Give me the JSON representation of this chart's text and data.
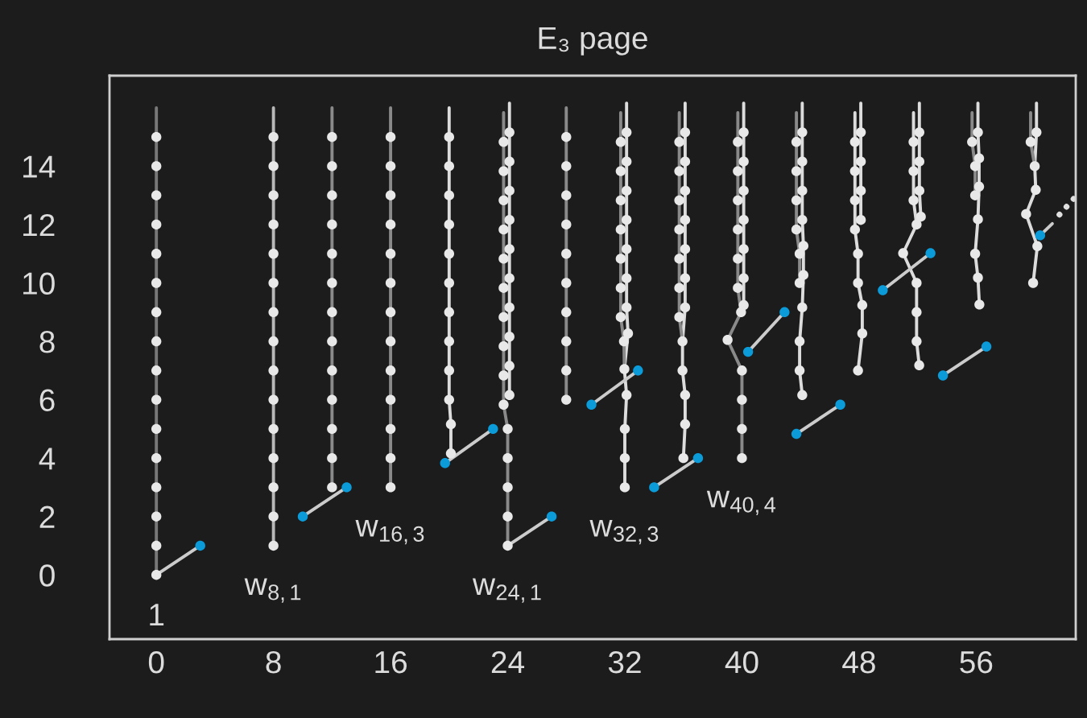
{
  "chart_data": {
    "type": "line",
    "title": "E₃ page",
    "xlim": [
      -3.2,
      62.8
    ],
    "ylim": [
      -2.2,
      17.1
    ],
    "xticks": [
      0,
      8,
      16,
      24,
      32,
      40,
      48,
      56
    ],
    "yticks": [
      0,
      2,
      4,
      6,
      8,
      10,
      12,
      14
    ],
    "annotations": [
      {
        "text": "1",
        "x": 0,
        "y": 0
      },
      {
        "text": "w$_{8,1}$",
        "x": 8,
        "y": 1
      },
      {
        "text": "w$_{16,3}$",
        "x": 16,
        "y": 3
      },
      {
        "text": "w$_{24,1}$",
        "x": 24,
        "y": 1
      },
      {
        "text": "w$_{32,3}$",
        "x": 32,
        "y": 3
      },
      {
        "text": "w$_{40,4}$",
        "x": 40,
        "y": 4
      }
    ],
    "series": [
      {
        "color": "#787878",
        "marker": "none",
        "x": [
          0,
          0
        ],
        "values": [
          0,
          16
        ]
      },
      {
        "color": "#b8b8b8",
        "marker": "none",
        "x": [
          8,
          8
        ],
        "values": [
          1,
          16
        ]
      },
      {
        "color": "#8a8a8a",
        "marker": "none",
        "x": [
          12,
          12
        ],
        "values": [
          3,
          16
        ]
      },
      {
        "color": "#8a8a8a",
        "marker": "none",
        "x": [
          16,
          16
        ],
        "values": [
          3,
          16
        ]
      },
      {
        "color": "#dcdcdc",
        "marker": "none",
        "x": [
          20.12,
          20.12,
          20,
          20
        ],
        "values": [
          4.16,
          5.16,
          6,
          16
        ]
      },
      {
        "color": "#8a8a8a",
        "marker": "none",
        "x": [
          24,
          24,
          23.72,
          23.72
        ],
        "values": [
          1,
          5,
          5.83,
          15.83
        ]
      },
      {
        "color": "#dcdcdc",
        "marker": "none",
        "x": [
          24.12,
          24.12
        ],
        "values": [
          6.16,
          16.16
        ]
      },
      {
        "color": "#8a8a8a",
        "marker": "none",
        "x": [
          28,
          28
        ],
        "values": [
          6,
          16
        ]
      },
      {
        "color": "#dcdcdc",
        "marker": "none",
        "x": [
          32,
          32,
          32.12,
          31.97,
          32.22,
          32.12,
          32.12
        ],
        "values": [
          3,
          5,
          6.16,
          7.05,
          8.27,
          9.16,
          16.16
        ]
      },
      {
        "color": "#8a8a8a",
        "marker": "none",
        "x": [
          31.97,
          31.94,
          31.72,
          31.72
        ],
        "values": [
          7.05,
          8,
          8.83,
          15.83
        ]
      },
      {
        "color": "#dcdcdc",
        "marker": "none",
        "x": [
          36,
          36.12,
          36.12,
          35.94,
          35.94,
          36.12,
          36.12
        ],
        "values": [
          4,
          5.16,
          6.16,
          7,
          8,
          9.16,
          16.16
        ]
      },
      {
        "color": "#8a8a8a",
        "marker": "none",
        "x": [
          35.94,
          35.72,
          35.72
        ],
        "values": [
          8,
          8.83,
          15.83
        ]
      },
      {
        "color": "#8a8a8a",
        "marker": "none",
        "x": [
          40,
          40,
          39.02,
          39.94,
          39.72,
          39.72
        ],
        "values": [
          4,
          7,
          8.05,
          9,
          9.83,
          15.83
        ]
      },
      {
        "color": "#dcdcdc",
        "marker": "none",
        "x": [
          40.12,
          40.12
        ],
        "values": [
          9.24,
          16.16
        ]
      },
      {
        "color": "#dcdcdc",
        "marker": "none",
        "x": [
          44.12,
          43.94,
          43.94,
          44.12,
          44.2,
          44.2,
          44.12,
          44.12
        ],
        "values": [
          6.16,
          7,
          8,
          9.16,
          10.27,
          11.27,
          12.16,
          16.16
        ]
      },
      {
        "color": "#8a8a8a",
        "marker": "none",
        "x": [
          43.94,
          43.94,
          43.72,
          43.72
        ],
        "values": [
          10,
          11,
          11.83,
          15.83
        ]
      },
      {
        "color": "#dcdcdc",
        "marker": "none",
        "x": [
          47.93,
          48.22,
          48.22,
          47.93,
          47.93,
          47.72,
          47.72
        ],
        "values": [
          7,
          8.27,
          9.24,
          10,
          11,
          11.83,
          15.83
        ]
      },
      {
        "color": "#dcdcdc",
        "marker": "none",
        "x": [
          48.12,
          48.12
        ],
        "values": [
          12.16,
          16.16
        ]
      },
      {
        "color": "#dcdcdc",
        "marker": "none",
        "x": [
          52.11,
          51.93,
          51.93,
          51.01,
          51.93,
          51.72,
          51.72
        ],
        "values": [
          7.18,
          8,
          10,
          11.02,
          12,
          12.83,
          15.83
        ]
      },
      {
        "color": "#dcdcdc",
        "marker": "none",
        "x": [
          52.22,
          52.12,
          52.12
        ],
        "values": [
          12.27,
          13.16,
          16.16
        ]
      },
      {
        "color": "#dcdcdc",
        "marker": "none",
        "x": [
          56.22,
          56.12,
          55.93,
          56.12,
          56.2,
          56.2,
          56.12,
          56.12
        ],
        "values": [
          9.26,
          10.18,
          11,
          12.18,
          13.3,
          14.27,
          15.16,
          16.16
        ]
      },
      {
        "color": "#8a8a8a",
        "marker": "none",
        "x": [
          55.93,
          55.93,
          55.72,
          55.72
        ],
        "values": [
          13,
          14,
          14.83,
          15.83
        ]
      },
      {
        "color": "#dcdcdc",
        "marker": "none",
        "x": [
          60.12,
          60.12,
          60,
          60.07,
          59.41,
          60.18,
          59.89
        ],
        "values": [
          16.16,
          15.16,
          14,
          13.19,
          12.36,
          11.26,
          10
        ]
      },
      {
        "color": "#8a8a8a",
        "marker": "none",
        "x": [
          59.72,
          59.72,
          60
        ],
        "values": [
          15.83,
          14.83,
          14
        ]
      },
      {
        "color": "#cccccc",
        "marker": "none",
        "x": [
          0,
          3
        ],
        "values": [
          0,
          1
        ]
      },
      {
        "color": "#cccccc",
        "marker": "none",
        "x": [
          10,
          13
        ],
        "values": [
          2,
          3
        ]
      },
      {
        "color": "#cccccc",
        "marker": "none",
        "x": [
          19.72,
          23
        ],
        "values": [
          3.83,
          5
        ]
      },
      {
        "color": "#cccccc",
        "marker": "none",
        "x": [
          24,
          27
        ],
        "values": [
          1,
          2
        ]
      },
      {
        "color": "#cccccc",
        "marker": "none",
        "x": [
          29.72,
          32.9
        ],
        "values": [
          5.83,
          7
        ]
      },
      {
        "color": "#cccccc",
        "marker": "none",
        "x": [
          34,
          37
        ],
        "values": [
          3,
          4
        ]
      },
      {
        "color": "#cccccc",
        "marker": "none",
        "x": [
          40.42,
          42.91
        ],
        "values": [
          7.64,
          9
        ]
      },
      {
        "color": "#cccccc",
        "marker": "none",
        "x": [
          43.72,
          46.72
        ],
        "values": [
          4.83,
          5.83
        ]
      },
      {
        "color": "#cccccc",
        "marker": "none",
        "x": [
          49.62,
          52.88
        ],
        "values": [
          9.75,
          11.02
        ]
      },
      {
        "color": "#cccccc",
        "marker": "none",
        "x": [
          53.73,
          56.7
        ],
        "values": [
          6.83,
          7.82
        ]
      },
      {
        "color": "#cccccc",
        "marker": "none",
        "x": [
          60.37,
          61.2
        ],
        "values": [
          11.63,
          12.03
        ]
      },
      {
        "color": "#e0e0e0",
        "marker": "none",
        "line_style": "dotted",
        "x": [
          61.69,
          62.71
        ],
        "values": [
          12.34,
          12.91
        ]
      },
      {
        "type": "scatter",
        "color": "#e8e8e8",
        "marker": "circle",
        "x": [
          0,
          0,
          0,
          0,
          0,
          0,
          0,
          0,
          0,
          0,
          0,
          0,
          0,
          0,
          0,
          0
        ],
        "values": [
          0,
          1,
          2,
          3,
          4,
          5,
          6,
          7,
          8,
          9,
          10,
          11,
          12,
          13,
          14,
          15
        ]
      },
      {
        "type": "scatter",
        "color": "#e8e8e8",
        "marker": "circle",
        "x": [
          8,
          8,
          8,
          8,
          8,
          8,
          8,
          8,
          8,
          8,
          8,
          8,
          8,
          8,
          8
        ],
        "values": [
          1,
          2,
          3,
          4,
          5,
          6,
          7,
          8,
          9,
          10,
          11,
          12,
          13,
          14,
          15
        ]
      },
      {
        "type": "scatter",
        "color": "#e8e8e8",
        "marker": "circle",
        "x": [
          12,
          12,
          12,
          12,
          12,
          12,
          12,
          12,
          12,
          12,
          12,
          12,
          12
        ],
        "values": [
          3,
          4,
          5,
          6,
          7,
          8,
          9,
          10,
          11,
          12,
          13,
          14,
          15
        ]
      },
      {
        "type": "scatter",
        "color": "#e8e8e8",
        "marker": "circle",
        "x": [
          16,
          16,
          16,
          16,
          16,
          16,
          16,
          16,
          16,
          16,
          16,
          16,
          16
        ],
        "values": [
          3,
          4,
          5,
          6,
          7,
          8,
          9,
          10,
          11,
          12,
          13,
          14,
          15
        ]
      },
      {
        "type": "scatter",
        "color": "#e8e8e8",
        "marker": "circle",
        "x": [
          20.12,
          20.12,
          20,
          20,
          20,
          20,
          20,
          20,
          20,
          20,
          20,
          20
        ],
        "values": [
          4.16,
          5.16,
          6,
          7,
          8,
          9,
          10,
          11,
          12,
          13,
          14,
          15
        ]
      },
      {
        "type": "scatter",
        "color": "#e8e8e8",
        "marker": "circle",
        "x": [
          24,
          24,
          24,
          24,
          24,
          23.72,
          23.72,
          23.72,
          23.72,
          23.72,
          23.72,
          23.72,
          23.72,
          23.72,
          23.72,
          24.12,
          24.12,
          24.12,
          24.12,
          24.12,
          24.12,
          24.12,
          24.12,
          24.12,
          24.12
        ],
        "values": [
          1,
          2,
          3,
          4,
          5,
          5.83,
          6.83,
          7.83,
          8.83,
          9.83,
          10.83,
          11.83,
          12.83,
          13.83,
          14.83,
          6.16,
          7.16,
          8.16,
          9.16,
          10.16,
          11.16,
          12.16,
          13.16,
          14.16,
          15.16
        ]
      },
      {
        "type": "scatter",
        "color": "#e8e8e8",
        "marker": "circle",
        "x": [
          28,
          28,
          28,
          28,
          28,
          28,
          28,
          28,
          28,
          28
        ],
        "values": [
          6,
          7,
          8,
          9,
          10,
          11,
          12,
          13,
          14,
          15
        ]
      },
      {
        "type": "scatter",
        "color": "#e8e8e8",
        "marker": "circle",
        "x": [
          32,
          32,
          32,
          32.12,
          31.97,
          31.94,
          32.22,
          31.72,
          31.72,
          31.72,
          31.72,
          31.72,
          31.72,
          31.72,
          32.12,
          32.12,
          32.12,
          32.12,
          32.12,
          32.12,
          32.12
        ],
        "values": [
          3,
          4,
          5,
          6.16,
          7.05,
          8,
          8.27,
          8.83,
          9.83,
          10.83,
          11.83,
          12.83,
          13.83,
          14.83,
          9.16,
          10.16,
          11.16,
          12.16,
          13.16,
          14.16,
          15.16
        ]
      },
      {
        "type": "scatter",
        "color": "#e8e8e8",
        "marker": "circle",
        "x": [
          36,
          36.12,
          36.12,
          35.94,
          35.94,
          35.72,
          35.72,
          35.72,
          35.72,
          35.72,
          35.72,
          35.72,
          36.12,
          36.12,
          36.12,
          36.12,
          36.12,
          36.12,
          36.12
        ],
        "values": [
          4,
          5.16,
          6.16,
          7,
          8,
          8.83,
          9.83,
          10.83,
          11.83,
          12.83,
          13.83,
          14.83,
          9.16,
          10.16,
          11.16,
          12.16,
          13.16,
          14.16,
          15.16
        ]
      },
      {
        "type": "scatter",
        "color": "#e8e8e8",
        "marker": "circle",
        "x": [
          40,
          40,
          40,
          40,
          39.02,
          39.94,
          40.12,
          39.72,
          39.72,
          39.72,
          39.72,
          39.72,
          39.72,
          40.12,
          40.12,
          40.12,
          40.12,
          40.12,
          40.12
        ],
        "values": [
          4,
          5,
          6,
          7,
          8.05,
          9,
          9.24,
          9.83,
          10.83,
          11.83,
          12.83,
          13.83,
          14.83,
          10.16,
          11.16,
          12.16,
          13.16,
          14.16,
          15.16
        ]
      },
      {
        "type": "scatter",
        "color": "#e8e8e8",
        "marker": "circle",
        "x": [
          44.12,
          43.94,
          43.94,
          44.12,
          43.94,
          44.2,
          43.94,
          44.2,
          43.72,
          43.72,
          43.72,
          43.72,
          44.12,
          44.12,
          44.12,
          44.12
        ],
        "values": [
          6.16,
          7,
          8,
          9.16,
          10,
          10.27,
          11,
          11.27,
          11.83,
          12.83,
          13.83,
          14.83,
          12.16,
          13.16,
          14.16,
          15.16
        ]
      },
      {
        "type": "scatter",
        "color": "#e8e8e8",
        "marker": "circle",
        "x": [
          47.93,
          48.22,
          48.22,
          47.93,
          47.93,
          47.72,
          47.72,
          47.72,
          47.72,
          48.12,
          48.12,
          48.12,
          48.12
        ],
        "values": [
          7,
          8.27,
          9.24,
          10,
          11,
          11.83,
          12.83,
          13.83,
          14.83,
          12.16,
          13.16,
          14.16,
          15.16
        ]
      },
      {
        "type": "scatter",
        "color": "#e8e8e8",
        "marker": "circle",
        "x": [
          52.11,
          51.93,
          51.93,
          51.93,
          51.01,
          51.93,
          52.22,
          51.72,
          51.72,
          51.72,
          52.12,
          52.12,
          52.12
        ],
        "values": [
          7.18,
          8,
          9,
          10,
          11.02,
          12,
          12.27,
          12.83,
          13.83,
          14.83,
          13.16,
          14.16,
          15.16
        ]
      },
      {
        "type": "scatter",
        "color": "#e8e8e8",
        "marker": "circle",
        "x": [
          56.22,
          56.12,
          55.93,
          56.12,
          55.93,
          56.2,
          55.93,
          56.2,
          55.72,
          56.12
        ],
        "values": [
          9.26,
          10.18,
          11,
          12.18,
          13,
          13.3,
          14,
          14.27,
          14.83,
          15.16
        ]
      },
      {
        "type": "scatter",
        "color": "#e8e8e8",
        "marker": "circle",
        "x": [
          59.72,
          60.12,
          60,
          60.07,
          59.41,
          60.18,
          59.89
        ],
        "values": [
          14.83,
          15.16,
          14,
          13.19,
          12.36,
          11.26,
          10
        ]
      },
      {
        "type": "scatter",
        "color": "#0b9bd9",
        "marker": "circle",
        "x": [
          3,
          10,
          13,
          19.72,
          23,
          27,
          29.72,
          32.9,
          34,
          37,
          40.42,
          42.91,
          43.72,
          46.72,
          49.62,
          52.88,
          53.73,
          56.7,
          60.37
        ],
        "values": [
          1,
          2,
          3,
          3.83,
          5,
          2,
          5.83,
          7,
          3,
          4,
          7.64,
          9,
          4.83,
          5.83,
          9.75,
          11.02,
          6.83,
          7.82,
          11.63
        ]
      }
    ]
  }
}
